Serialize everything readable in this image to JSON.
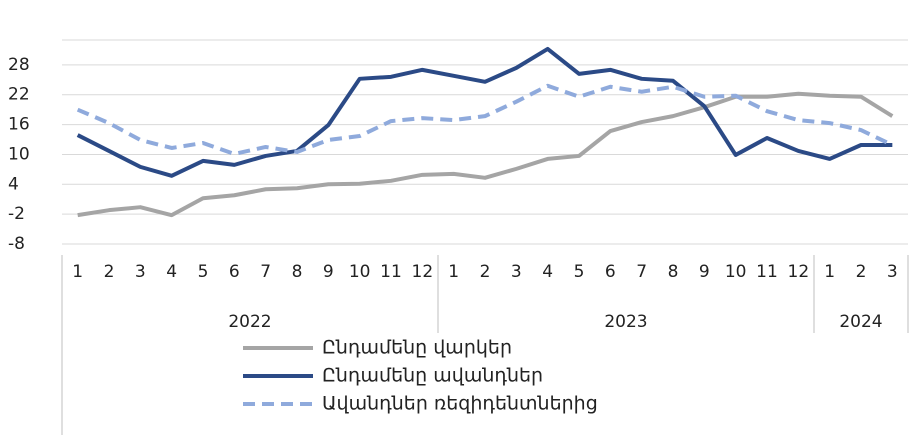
{
  "chart_data": {
    "type": "line",
    "categories": [
      "1",
      "2",
      "3",
      "4",
      "5",
      "6",
      "7",
      "8",
      "9",
      "10",
      "11",
      "12",
      "1",
      "2",
      "3",
      "4",
      "5",
      "6",
      "7",
      "8",
      "9",
      "10",
      "11",
      "12",
      "1",
      "2",
      "3"
    ],
    "years": [
      "2022",
      "2023",
      "2024"
    ],
    "ylim": [
      -8,
      33
    ],
    "yticks": [
      -8,
      -2,
      4,
      10,
      16,
      22,
      28
    ],
    "grid": true,
    "legend": "bottom",
    "series": [
      {
        "name": "Ընդամենը վարկեր",
        "color": "#a5a5a5",
        "dash": false,
        "values": [
          -2.2,
          -1.2,
          -0.6,
          -2.2,
          1.2,
          1.8,
          3,
          3.2,
          4,
          4.1,
          4.7,
          5.9,
          6.1,
          5.3,
          7.1,
          9.1,
          9.7,
          14.7,
          16.5,
          17.7,
          19.5,
          21.6,
          21.6,
          22.2,
          21.8,
          21.6,
          17.7
        ]
      },
      {
        "name": "Ընդամենը ավանդներ",
        "color": "#2b4a86",
        "dash": false,
        "values": [
          13.9,
          10.7,
          7.5,
          5.7,
          8.7,
          7.9,
          9.7,
          10.7,
          15.9,
          25.2,
          25.6,
          27,
          25.8,
          24.6,
          27.4,
          31.2,
          26.2,
          27,
          25.2,
          24.8,
          19.7,
          9.9,
          13.3,
          10.7,
          9.1,
          11.9,
          11.9
        ]
      },
      {
        "name": "Ավանդներ ռեզիդենտներից",
        "color": "#8faadc",
        "dash": true,
        "values": [
          19,
          16.3,
          12.9,
          11.3,
          12.3,
          10.1,
          11.5,
          10.5,
          12.9,
          13.7,
          16.7,
          17.3,
          16.9,
          17.7,
          20.6,
          23.8,
          21.6,
          23.6,
          22.6,
          23.6,
          21.6,
          21.8,
          18.7,
          16.9,
          16.3,
          14.9,
          11.9
        ]
      }
    ]
  }
}
